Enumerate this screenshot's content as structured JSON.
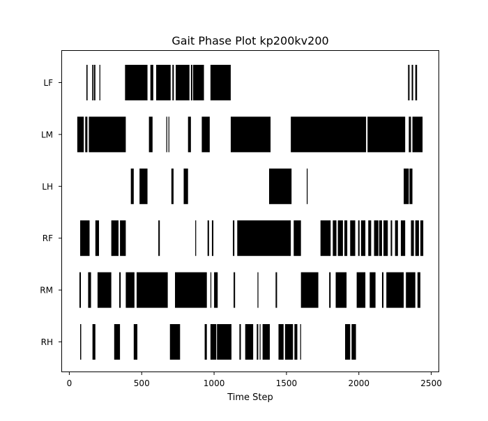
{
  "chart_data": {
    "type": "broken_barh",
    "title": "Gait Phase Plot kp200kv200",
    "xlabel": "Time Step",
    "ylabel": "",
    "xlim": [
      -55,
      2555
    ],
    "x_ticks": [
      0,
      500,
      1000,
      1500,
      2000,
      2500
    ],
    "grid": false,
    "legend": "none",
    "bar_color": "#000000",
    "rows": [
      {
        "label": "LF",
        "intervals": [
          [
            118,
            126
          ],
          [
            158,
            166
          ],
          [
            170,
            180
          ],
          [
            208,
            214
          ],
          [
            385,
            540
          ],
          [
            560,
            580
          ],
          [
            600,
            700
          ],
          [
            712,
            722
          ],
          [
            735,
            830
          ],
          [
            840,
            850
          ],
          [
            855,
            930
          ],
          [
            975,
            1115
          ],
          [
            2340,
            2350
          ],
          [
            2365,
            2375
          ],
          [
            2390,
            2402
          ]
        ]
      },
      {
        "label": "LM",
        "intervals": [
          [
            55,
            100
          ],
          [
            110,
            125
          ],
          [
            135,
            390
          ],
          [
            550,
            575
          ],
          [
            670,
            676
          ],
          [
            685,
            690
          ],
          [
            820,
            840
          ],
          [
            915,
            970
          ],
          [
            1115,
            1390
          ],
          [
            1530,
            2050
          ],
          [
            2060,
            2320
          ],
          [
            2345,
            2360
          ],
          [
            2370,
            2440
          ]
        ]
      },
      {
        "label": "LH",
        "intervals": [
          [
            425,
            445
          ],
          [
            485,
            540
          ],
          [
            705,
            720
          ],
          [
            790,
            820
          ],
          [
            1380,
            1535
          ],
          [
            1640,
            1646
          ],
          [
            2310,
            2345
          ],
          [
            2350,
            2370
          ]
        ]
      },
      {
        "label": "RF",
        "intervals": [
          [
            75,
            140
          ],
          [
            180,
            205
          ],
          [
            290,
            340
          ],
          [
            350,
            390
          ],
          [
            615,
            625
          ],
          [
            870,
            876
          ],
          [
            955,
            965
          ],
          [
            985,
            995
          ],
          [
            1130,
            1140
          ],
          [
            1160,
            1530
          ],
          [
            1550,
            1600
          ],
          [
            1735,
            1805
          ],
          [
            1820,
            1845
          ],
          [
            1855,
            1890
          ],
          [
            1900,
            1920
          ],
          [
            1940,
            1975
          ],
          [
            1995,
            2005
          ],
          [
            2015,
            2045
          ],
          [
            2065,
            2085
          ],
          [
            2105,
            2135
          ],
          [
            2140,
            2160
          ],
          [
            2170,
            2200
          ],
          [
            2220,
            2230
          ],
          [
            2250,
            2270
          ],
          [
            2290,
            2320
          ],
          [
            2360,
            2380
          ],
          [
            2390,
            2415
          ],
          [
            2425,
            2445
          ]
        ]
      },
      {
        "label": "RM",
        "intervals": [
          [
            70,
            80
          ],
          [
            130,
            150
          ],
          [
            195,
            290
          ],
          [
            345,
            355
          ],
          [
            390,
            450
          ],
          [
            465,
            680
          ],
          [
            730,
            950
          ],
          [
            975,
            980
          ],
          [
            1000,
            1025
          ],
          [
            1135,
            1145
          ],
          [
            1300,
            1306
          ],
          [
            1425,
            1435
          ],
          [
            1600,
            1720
          ],
          [
            1795,
            1805
          ],
          [
            1840,
            1915
          ],
          [
            1985,
            2045
          ],
          [
            2075,
            2115
          ],
          [
            2160,
            2170
          ],
          [
            2190,
            2310
          ],
          [
            2325,
            2390
          ],
          [
            2405,
            2425
          ]
        ]
      },
      {
        "label": "RH",
        "intervals": [
          [
            75,
            82
          ],
          [
            160,
            180
          ],
          [
            310,
            350
          ],
          [
            445,
            470
          ],
          [
            695,
            765
          ],
          [
            935,
            950
          ],
          [
            975,
            1015
          ],
          [
            1020,
            1120
          ],
          [
            1175,
            1185
          ],
          [
            1215,
            1270
          ],
          [
            1295,
            1305
          ],
          [
            1315,
            1320
          ],
          [
            1335,
            1385
          ],
          [
            1445,
            1480
          ],
          [
            1490,
            1545
          ],
          [
            1555,
            1575
          ],
          [
            1595,
            1600
          ],
          [
            1905,
            1940
          ],
          [
            1950,
            1980
          ]
        ]
      }
    ]
  }
}
